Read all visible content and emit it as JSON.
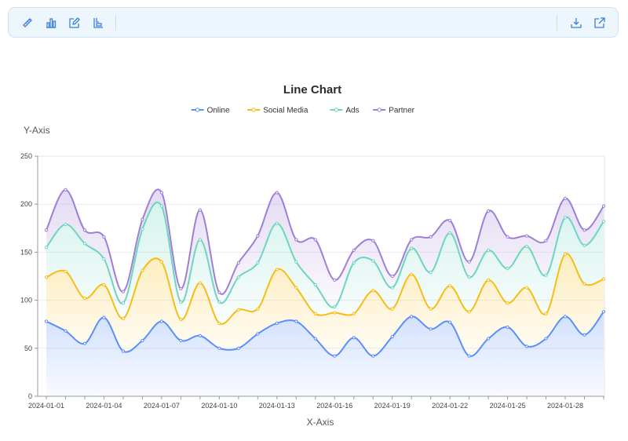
{
  "toolbar": {
    "left_tools": [
      {
        "name": "ruler-icon",
        "label": "ruler"
      },
      {
        "name": "bar-chart-icon",
        "label": "bar chart"
      },
      {
        "name": "edit-icon",
        "label": "edit"
      },
      {
        "name": "layout-icon",
        "label": "layout"
      }
    ],
    "right_tools": [
      {
        "name": "download-icon",
        "label": "download"
      },
      {
        "name": "open-external-icon",
        "label": "open external"
      }
    ]
  },
  "chart_data": {
    "type": "area",
    "stacked": true,
    "title": "Line Chart",
    "xlabel": "X-Axis",
    "ylabel": "Y-Axis",
    "ylim": [
      0,
      250
    ],
    "yticks": [
      0,
      50,
      100,
      150,
      200,
      250
    ],
    "grid": true,
    "legend": "top-center",
    "x": [
      "2024-01-01",
      "2024-01-02",
      "2024-01-03",
      "2024-01-04",
      "2024-01-05",
      "2024-01-06",
      "2024-01-07",
      "2024-01-08",
      "2024-01-09",
      "2024-01-10",
      "2024-01-11",
      "2024-01-12",
      "2024-01-13",
      "2024-01-14",
      "2024-01-15",
      "2024-01-16",
      "2024-01-17",
      "2024-01-18",
      "2024-01-19",
      "2024-01-20",
      "2024-01-21",
      "2024-01-22",
      "2024-01-23",
      "2024-01-24",
      "2024-01-25",
      "2024-01-26",
      "2024-01-27",
      "2024-01-28",
      "2024-01-29",
      "2024-01-30"
    ],
    "xtick_labels": [
      "2024-01-01",
      "2024-01-04",
      "2024-01-07",
      "2024-01-10",
      "2024-01-13",
      "2024-01-16",
      "2024-01-19",
      "2024-01-22",
      "2024-01-25",
      "2024-01-28"
    ],
    "series": [
      {
        "name": "Online",
        "color": "#5b8ff9",
        "values": [
          78,
          68,
          55,
          82,
          47,
          58,
          78,
          58,
          63,
          50,
          50,
          65,
          76,
          78,
          60,
          42,
          61,
          42,
          62,
          83,
          70,
          77,
          42,
          60,
          72,
          52,
          60,
          83,
          64,
          88
        ]
      },
      {
        "name": "Social Media",
        "color": "#f6bd16",
        "values": [
          46,
          62,
          47,
          34,
          34,
          73,
          62,
          22,
          55,
          26,
          40,
          26,
          56,
          35,
          26,
          45,
          25,
          68,
          29,
          44,
          21,
          38,
          46,
          61,
          25,
          61,
          26,
          65,
          53,
          34
        ]
      },
      {
        "name": "Ads",
        "color": "#6dd5c0",
        "values": [
          31,
          49,
          57,
          27,
          16,
          43,
          58,
          18,
          45,
          22,
          34,
          48,
          48,
          27,
          30,
          6,
          53,
          31,
          22,
          27,
          38,
          55,
          36,
          31,
          36,
          43,
          40,
          38,
          40,
          60
        ]
      },
      {
        "name": "Partner",
        "color": "#9d7fd6",
        "values": [
          18,
          36,
          14,
          23,
          12,
          10,
          14,
          14,
          31,
          10,
          15,
          28,
          32,
          23,
          47,
          28,
          13,
          21,
          12,
          9,
          37,
          13,
          16,
          41,
          33,
          11,
          36,
          20,
          16,
          16
        ]
      }
    ]
  }
}
